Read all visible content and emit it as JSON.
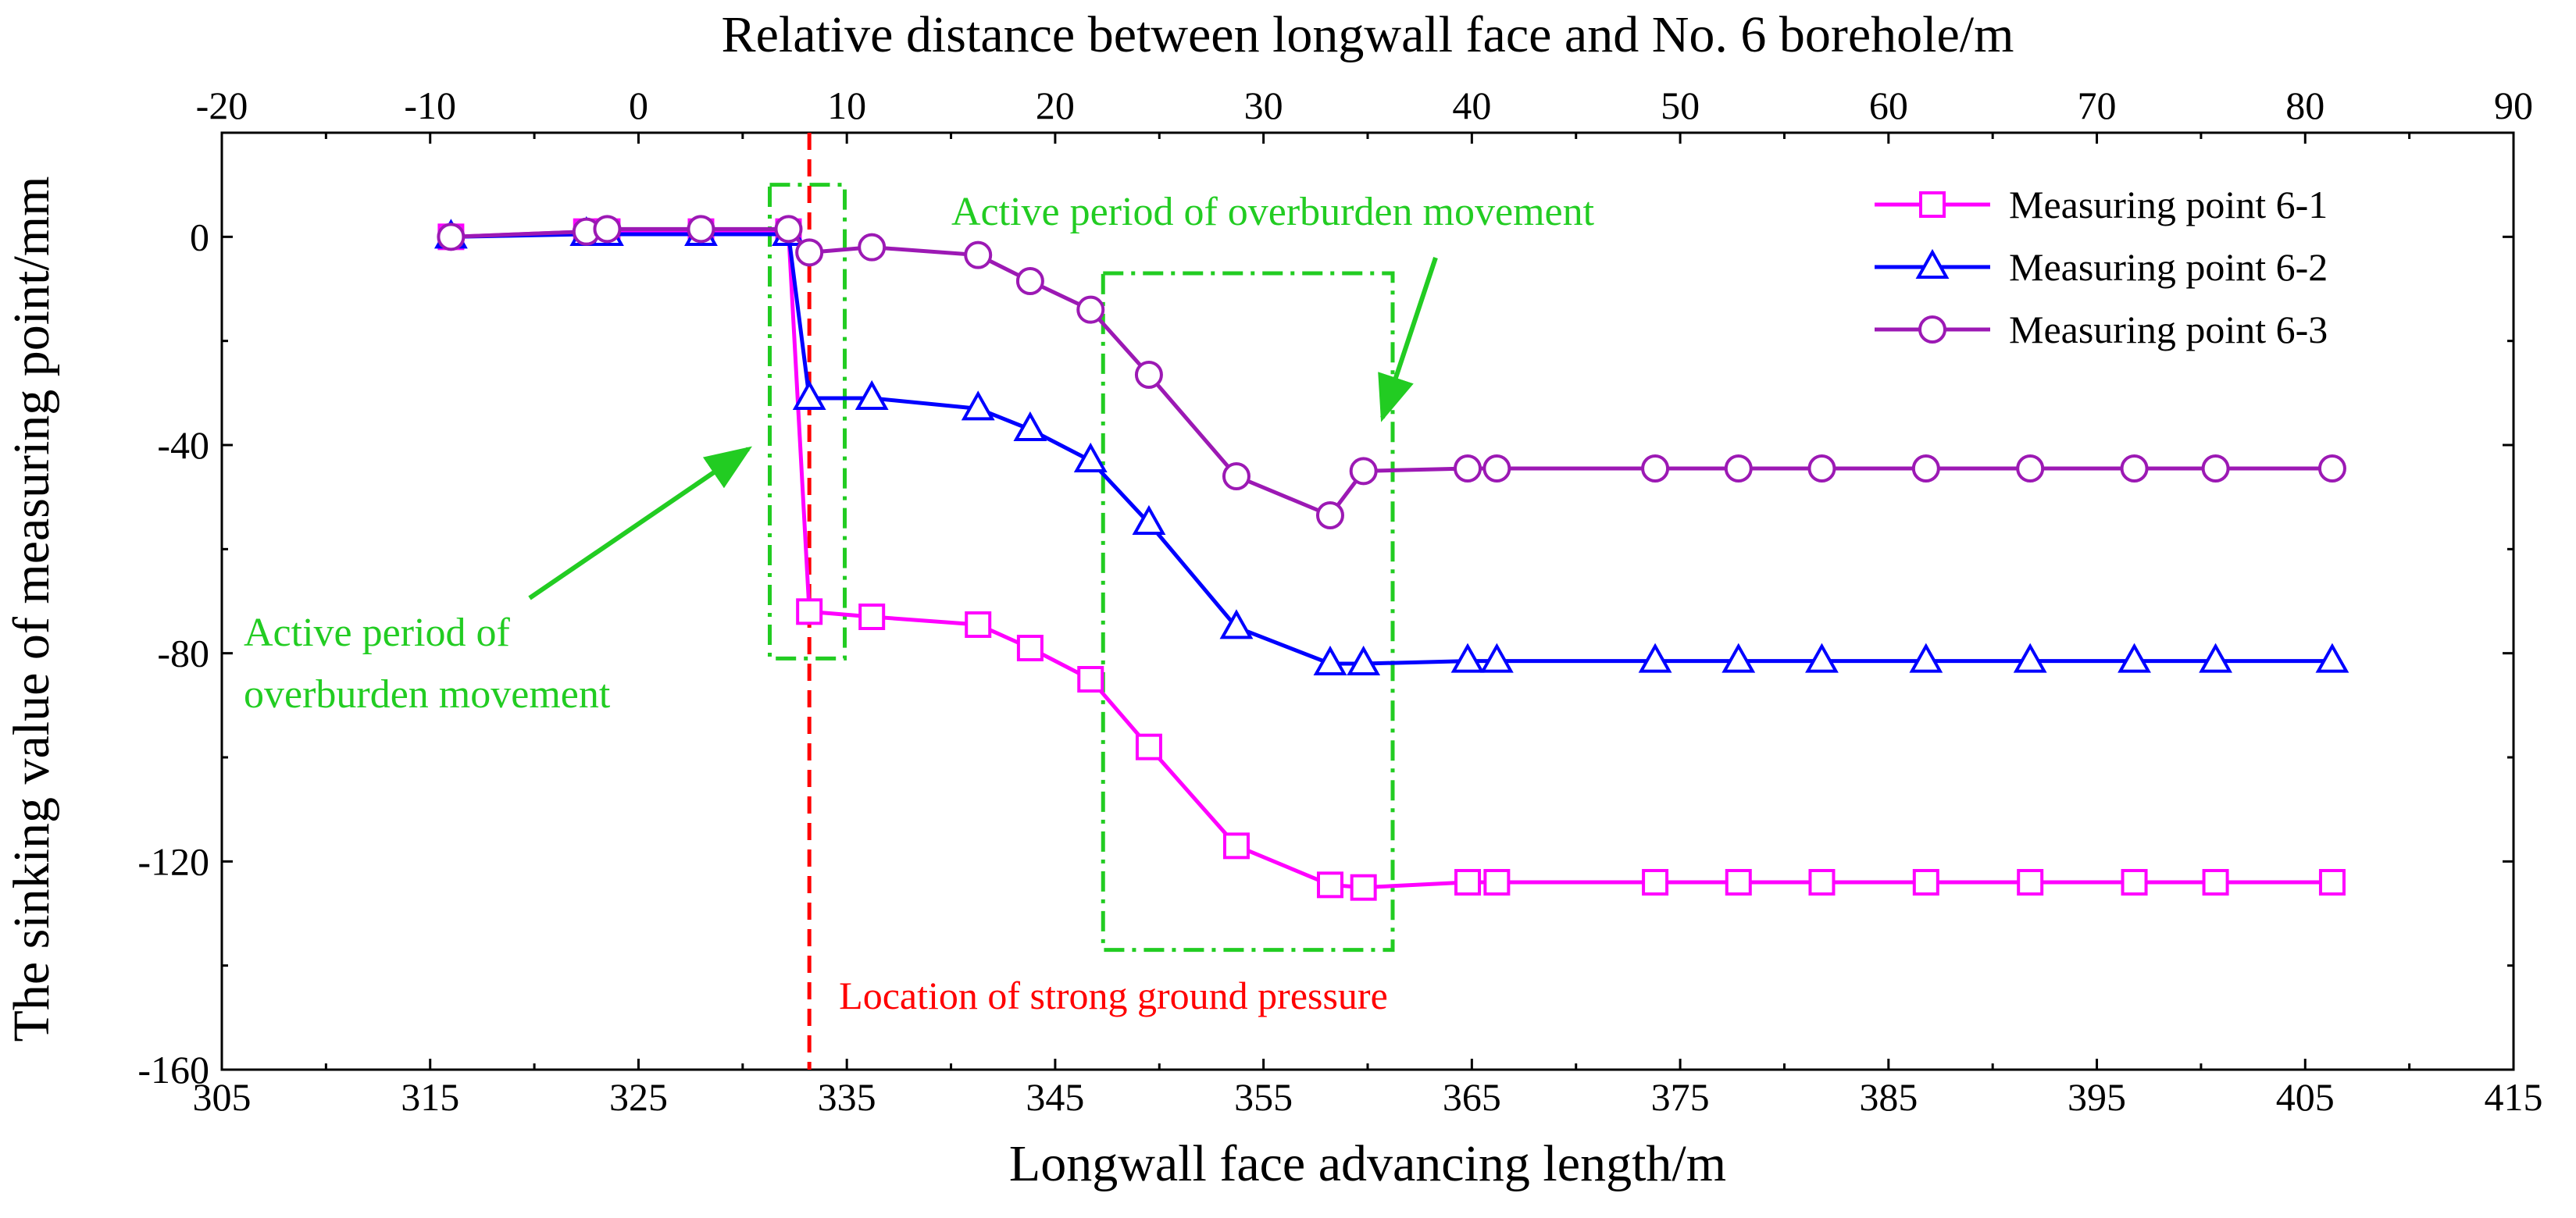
{
  "chart_data": {
    "type": "line",
    "title": "",
    "xlabel": "Longwall face advancing length/m",
    "x2label": "Relative distance between longwall face and No. 6 borehole/m",
    "ylabel": "The sinking value of measuring point/mm",
    "xlim": [
      305,
      415
    ],
    "x2lim": [
      -20,
      90
    ],
    "ylim": [
      -160,
      20
    ],
    "xticks": [
      305,
      315,
      325,
      335,
      345,
      355,
      365,
      375,
      385,
      395,
      405,
      415
    ],
    "x2ticks": [
      -20,
      -10,
      0,
      10,
      20,
      30,
      40,
      50,
      60,
      70,
      80,
      90
    ],
    "yticks": [
      0,
      -40,
      -80,
      -120,
      -160
    ],
    "legend_position": "top-right",
    "x": [
      316,
      322.5,
      323.5,
      328,
      332.2,
      333.2,
      336.2,
      341.3,
      343.8,
      346.7,
      349.5,
      353.7,
      358.2,
      359.8,
      364.8,
      366.2,
      373.8,
      377.8,
      381.8,
      386.8,
      391.8,
      396.8,
      400.7,
      406.3
    ],
    "series": [
      {
        "name": "Measuring point 6-1",
        "color": "#ff00ff",
        "marker": "square",
        "values": [
          0,
          1,
          1,
          1,
          1,
          -72,
          -73,
          -74.5,
          -79,
          -85,
          -98,
          -117,
          -124.5,
          -125,
          -124,
          -124,
          -124,
          -124,
          -124,
          -124,
          -124,
          -124,
          -124,
          -124
        ]
      },
      {
        "name": "Measuring point 6-2",
        "color": "#0000ff",
        "marker": "triangle",
        "values": [
          0,
          0.5,
          0.5,
          0.5,
          0.5,
          -31,
          -31,
          -33,
          -37,
          -43,
          -55,
          -75,
          -82,
          -82,
          -81.5,
          -81.5,
          -81.5,
          -81.5,
          -81.5,
          -81.5,
          -81.5,
          -81.5,
          -81.5,
          -81.5
        ]
      },
      {
        "name": "Measuring point 6-3",
        "color": "#9c19b4",
        "marker": "circle",
        "values": [
          0,
          1,
          1.5,
          1.5,
          1.5,
          -3,
          -2,
          -3.5,
          -8.5,
          -14,
          -26.5,
          -46,
          -53.5,
          -45,
          -44.5,
          -44.5,
          -44.5,
          -44.5,
          -44.5,
          -44.5,
          -44.5,
          -44.5,
          -44.5,
          -44.5
        ]
      }
    ],
    "vline": {
      "x": 333.2,
      "color": "#ff0000",
      "label": "Location of strong ground pressure"
    },
    "regions": [
      {
        "x0": 331.3,
        "x1": 334.9,
        "y0": -81,
        "y1": 10,
        "color": "#22cc22"
      },
      {
        "x0": 347.3,
        "x1": 361.2,
        "y0": -137,
        "y1": -7,
        "color": "#22cc22"
      }
    ],
    "annotations": [
      {
        "lines": [
          "Active period of overburden movement"
        ],
        "color": "#22cc22"
      },
      {
        "lines": [
          "Active period of",
          "overburden movement"
        ],
        "color": "#22cc22"
      }
    ]
  }
}
